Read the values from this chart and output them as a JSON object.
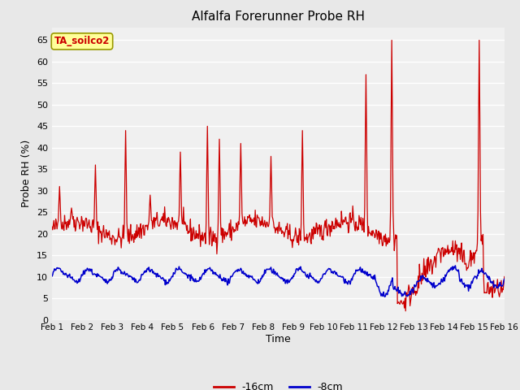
{
  "title": "Alfalfa Forerunner Probe RH",
  "ylabel": "Probe RH (%)",
  "xlabel": "Time",
  "ylim": [
    0,
    68
  ],
  "yticks": [
    0,
    5,
    10,
    15,
    20,
    25,
    30,
    35,
    40,
    45,
    50,
    55,
    60,
    65
  ],
  "fig_bg_color": "#e8e8e8",
  "plot_bg_color": "#f0f0f0",
  "grid_color": "#ffffff",
  "legend_labels": [
    "-16cm",
    "-8cm"
  ],
  "legend_colors": [
    "#cc0000",
    "#0000cc"
  ],
  "station_label": "TA_soilco2",
  "station_label_color": "#cc0000",
  "station_box_facecolor": "#ffff99",
  "station_box_edgecolor": "#999900",
  "n_days": 15,
  "n_per_day": 48,
  "figsize": [
    6.4,
    4.8
  ],
  "dpi": 100
}
